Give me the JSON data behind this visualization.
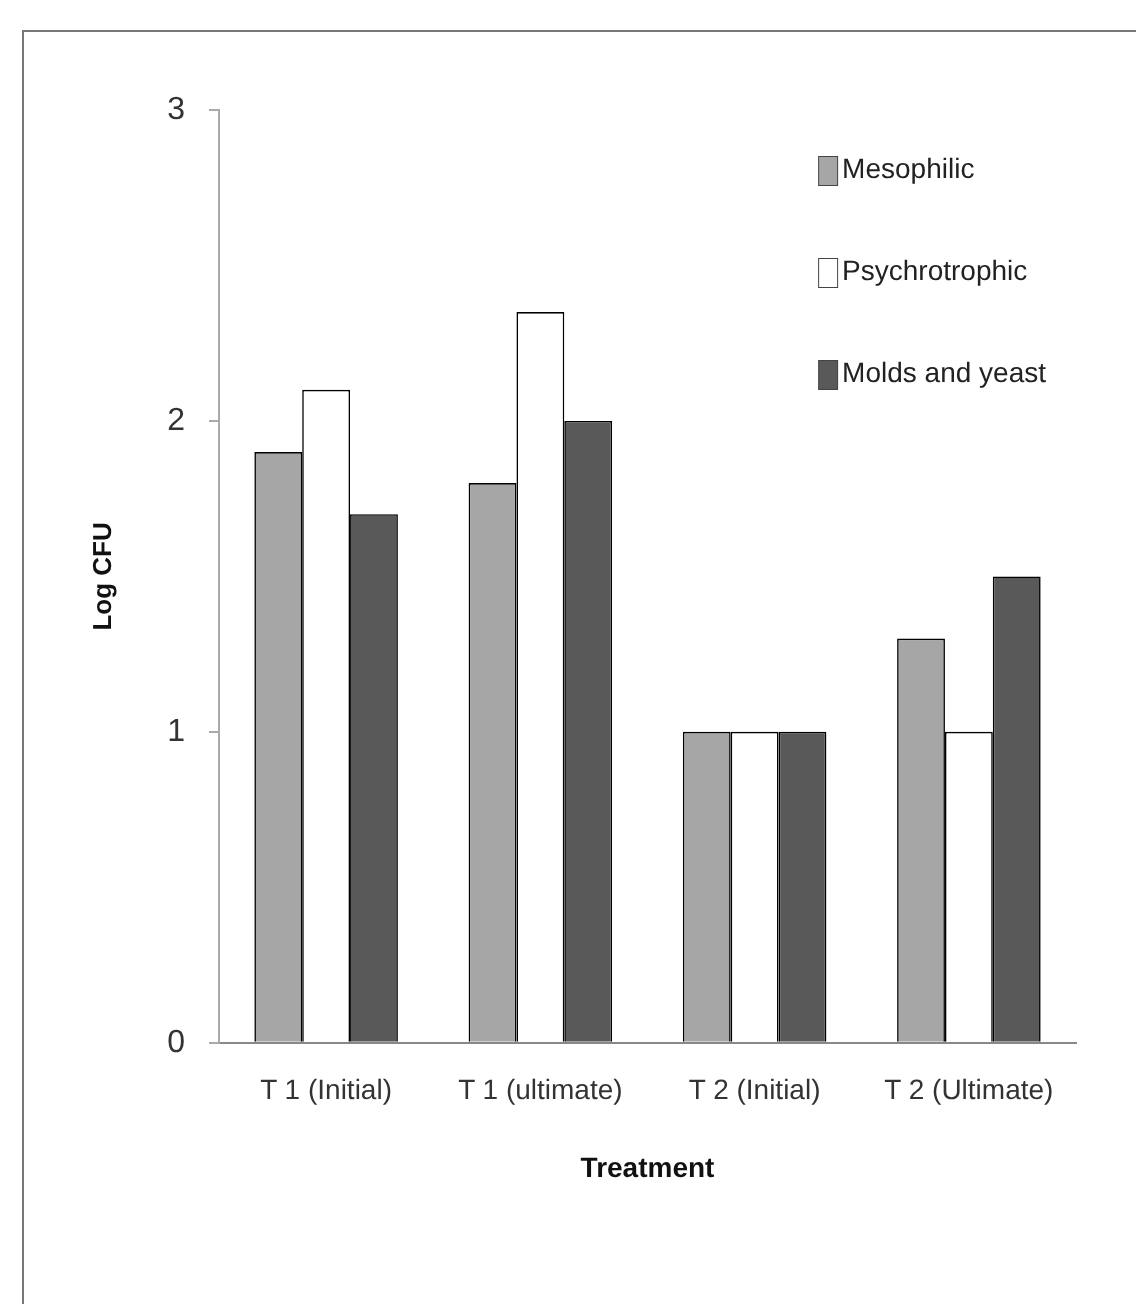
{
  "chart_data": {
    "type": "bar",
    "xlabel": "Treatment",
    "ylabel": "Log CFU",
    "categories": [
      "T 1 (Initial)",
      "T 1 (ultimate)",
      "T 2 (Initial)",
      "T 2 (Ultimate)"
    ],
    "series": [
      {
        "name": "Mesophilic",
        "color": "#a6a6a6",
        "values": [
          1.9,
          1.8,
          1.0,
          1.3
        ]
      },
      {
        "name": "Psychrotrophic",
        "color": "#ffffff",
        "values": [
          2.1,
          2.35,
          1.0,
          1.0
        ]
      },
      {
        "name": "Molds and yeast",
        "color": "#595959",
        "values": [
          1.7,
          2.0,
          1.0,
          1.5
        ]
      }
    ],
    "ylim": [
      0,
      3
    ],
    "yticks": [
      0,
      1,
      2,
      3
    ],
    "grid": false,
    "legend": "top right"
  }
}
